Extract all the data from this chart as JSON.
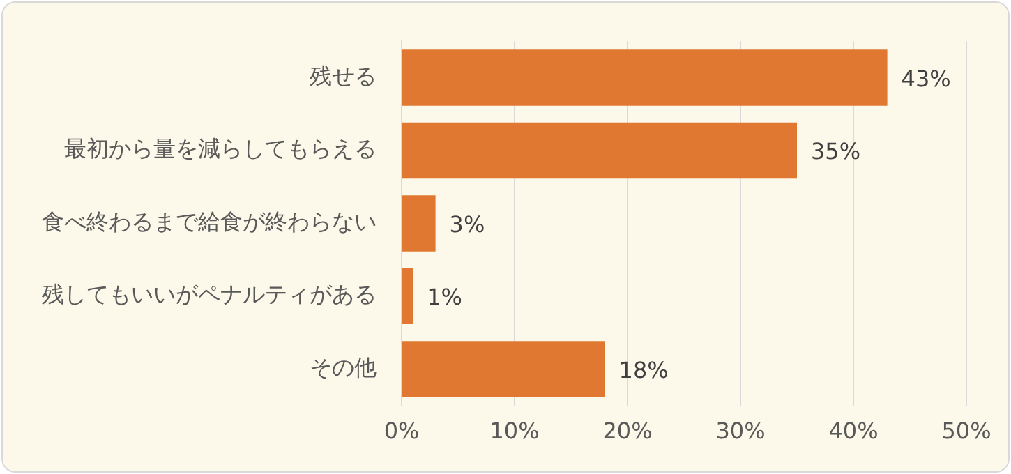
{
  "chart_data": {
    "type": "bar",
    "orientation": "horizontal",
    "categories": [
      "残せる",
      "最初から量を減らしてもらえる",
      "食べ終わるまで給食が終わらない",
      "残してもいいがペナルティがある",
      "その他"
    ],
    "values": [
      43,
      35,
      3,
      1,
      18
    ],
    "value_labels": [
      "43%",
      "35%",
      "3%",
      "1%",
      "18%"
    ],
    "color": "#e07832",
    "xlim": [
      0,
      50
    ],
    "xticks": [
      {
        "value": 0,
        "label": "0%"
      },
      {
        "value": 10,
        "label": "10%"
      },
      {
        "value": 20,
        "label": "20%"
      },
      {
        "value": 30,
        "label": "30%"
      },
      {
        "value": 40,
        "label": "40%"
      },
      {
        "value": 50,
        "label": "50%"
      }
    ],
    "grid": "x",
    "legend": false
  }
}
